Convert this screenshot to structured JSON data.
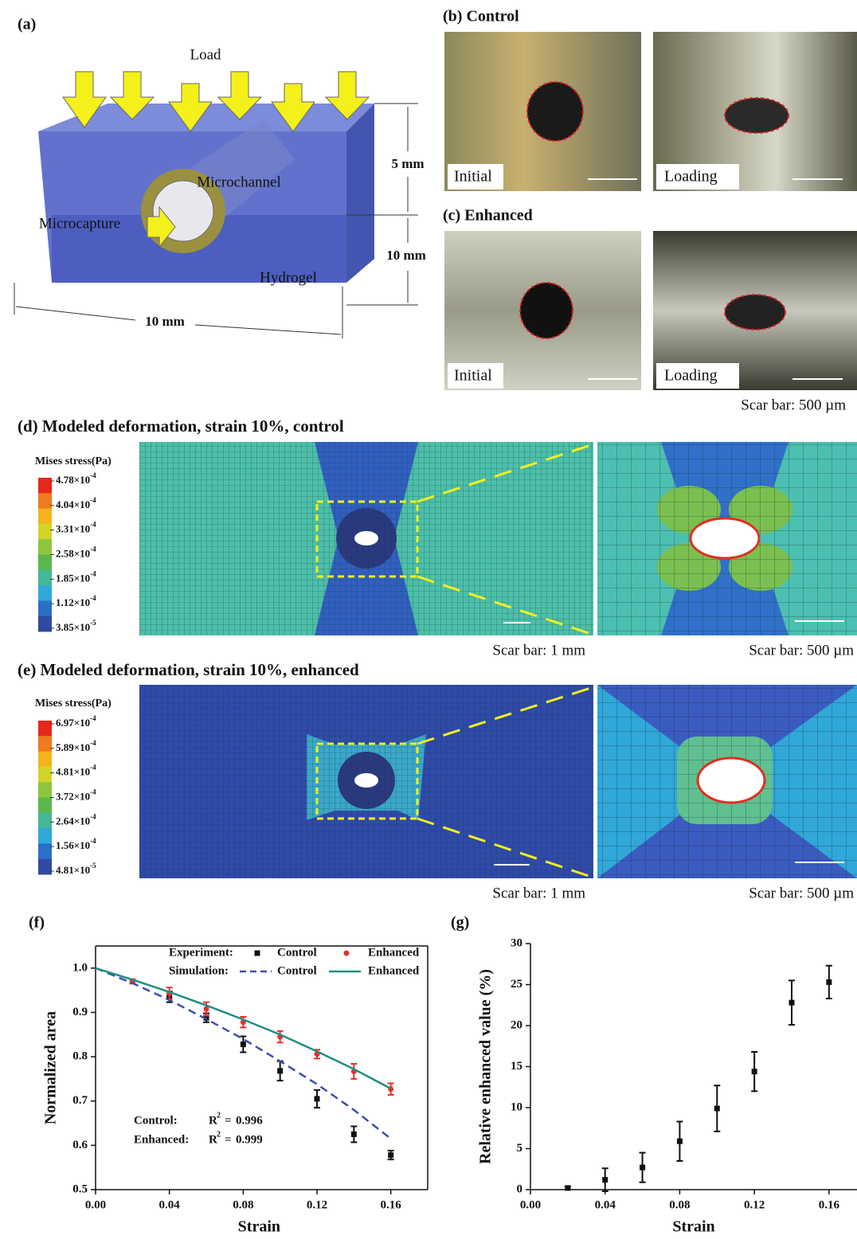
{
  "panel_a": {
    "label": "(a)",
    "load": "Load",
    "height_top": "5 mm",
    "height_bottom": "10 mm",
    "channel": "Microchannel",
    "capture": "Microcapture",
    "gel": "Hydrogel",
    "width": "10 mm"
  },
  "panel_b": {
    "label": "(b) Control",
    "initial": "Initial",
    "loading": "Loading"
  },
  "panel_c": {
    "label": "(c) Enhanced",
    "initial": "Initial",
    "loading": "Loading",
    "scale": "Scar bar: 500 µm"
  },
  "panel_d": {
    "label": "(d) Modeled deformation, strain 10%, control",
    "legend_title": "Mises stress(Pa)",
    "legend_ticks": [
      {
        "mantissa": "4.78×10",
        "exponent": "-4"
      },
      {
        "mantissa": "4.04×10",
        "exponent": "-4"
      },
      {
        "mantissa": "3.31×10",
        "exponent": "-4"
      },
      {
        "mantissa": "2.58×10",
        "exponent": "-4"
      },
      {
        "mantissa": "1.85×10",
        "exponent": "-4"
      },
      {
        "mantissa": "1.12×10",
        "exponent": "-4"
      },
      {
        "mantissa": "3.85×10",
        "exponent": "-5"
      }
    ],
    "scale_left": "Scar bar: 1 mm",
    "scale_right": "Scar bar: 500 µm"
  },
  "panel_e": {
    "label": "(e) Modeled deformation, strain 10%, enhanced",
    "legend_title": "Mises stress(Pa)",
    "legend_ticks": [
      {
        "mantissa": "6.97×10",
        "exponent": "-4"
      },
      {
        "mantissa": "5.89×10",
        "exponent": "-4"
      },
      {
        "mantissa": "4.81×10",
        "exponent": "-4"
      },
      {
        "mantissa": "3.72×10",
        "exponent": "-4"
      },
      {
        "mantissa": "2.64×10",
        "exponent": "-4"
      },
      {
        "mantissa": "1.56×10",
        "exponent": "-4"
      },
      {
        "mantissa": "4.81×10",
        "exponent": "-5"
      }
    ],
    "scale_left": "Scar bar: 1 mm",
    "scale_right": "Scar bar: 500 µm"
  },
  "chart_data": [
    {
      "type": "line",
      "label": "(f)",
      "x_label": "Strain",
      "y_label": "Normalized area",
      "box": true,
      "xlim": [
        0,
        0.18
      ],
      "ylim": [
        0.5,
        1.05
      ],
      "xticks": [
        {
          "value": 0,
          "label": "0.00"
        },
        0.04,
        0.08,
        0.12,
        0.16
      ],
      "yticks": [
        0.5,
        0.6,
        0.7,
        0.8,
        0.9,
        {
          "value": 1,
          "label": "1.0"
        }
      ],
      "series_groups": [
        {
          "name": "Experiment:",
          "series": [
            {
              "name": "Control",
              "color": "#111111",
              "mode": "markers",
              "marker": "square",
              "x": [
                0.04,
                0.06,
                0.08,
                0.1,
                0.12,
                0.14,
                0.16
              ],
              "values": [
                0.935,
                0.888,
                0.828,
                0.768,
                0.705,
                0.625,
                0.578
              ],
              "errors": [
                0.012,
                0.01,
                0.018,
                0.022,
                0.02,
                0.018,
                0.01
              ]
            },
            {
              "name": "Enhanced",
              "color": "#e8322a",
              "mode": "markers",
              "marker": "circle",
              "x": [
                0.02,
                0.04,
                0.06,
                0.08,
                0.1,
                0.12,
                0.14,
                0.16
              ],
              "values": [
                0.97,
                0.943,
                0.908,
                0.878,
                0.845,
                0.806,
                0.767,
                0.727
              ],
              "errors": [
                0.005,
                0.013,
                0.015,
                0.012,
                0.013,
                0.01,
                0.017,
                0.013
              ]
            }
          ]
        },
        {
          "name": "Simulation:",
          "series": [
            {
              "name": "Control",
              "color": "#3b4fb0",
              "mode": "line",
              "dash": true,
              "x": [
                0,
                0.02,
                0.04,
                0.06,
                0.08,
                0.1,
                0.12,
                0.14,
                0.16
              ],
              "values": [
                1.0,
                0.966,
                0.928,
                0.885,
                0.84,
                0.79,
                0.738,
                0.68,
                0.615
              ]
            },
            {
              "name": "Enhanced",
              "color": "#1f8f82",
              "mode": "line",
              "dash": false,
              "x": [
                0,
                0.02,
                0.04,
                0.06,
                0.08,
                0.1,
                0.12,
                0.14,
                0.16
              ],
              "values": [
                1.0,
                0.974,
                0.946,
                0.916,
                0.884,
                0.85,
                0.812,
                0.772,
                0.728
              ]
            }
          ]
        }
      ],
      "annotations": [
        {
          "name": "Control:",
          "symbol": "R",
          "power": "2",
          "sign": "=",
          "value": 0.996
        },
        {
          "name": "Enhanced:",
          "symbol": "R",
          "power": "2",
          "sign": "=",
          "value": 0.999
        }
      ]
    },
    {
      "type": "scatter",
      "label": "(g)",
      "x_label": "Strain",
      "y_label": "Relative enhanced value (%)",
      "box": false,
      "xlim": [
        0,
        0.175
      ],
      "ylim": [
        0,
        30
      ],
      "xticks": [
        {
          "value": 0,
          "label": "0.00"
        },
        0.04,
        0.08,
        0.12,
        0.16
      ],
      "yticks": [
        0,
        5,
        10,
        15,
        20,
        25,
        30
      ],
      "series": [
        {
          "color": "#111111",
          "mode": "markers",
          "marker": "square",
          "x": [
            0.02,
            0.04,
            0.06,
            0.08,
            0.1,
            0.12,
            0.14,
            0.16
          ],
          "values": [
            0.2,
            1.2,
            2.7,
            5.9,
            9.9,
            14.4,
            22.8,
            25.3
          ],
          "errors": [
            0.2,
            1.4,
            1.8,
            2.4,
            2.8,
            2.4,
            2.7,
            2.0
          ]
        }
      ]
    }
  ]
}
